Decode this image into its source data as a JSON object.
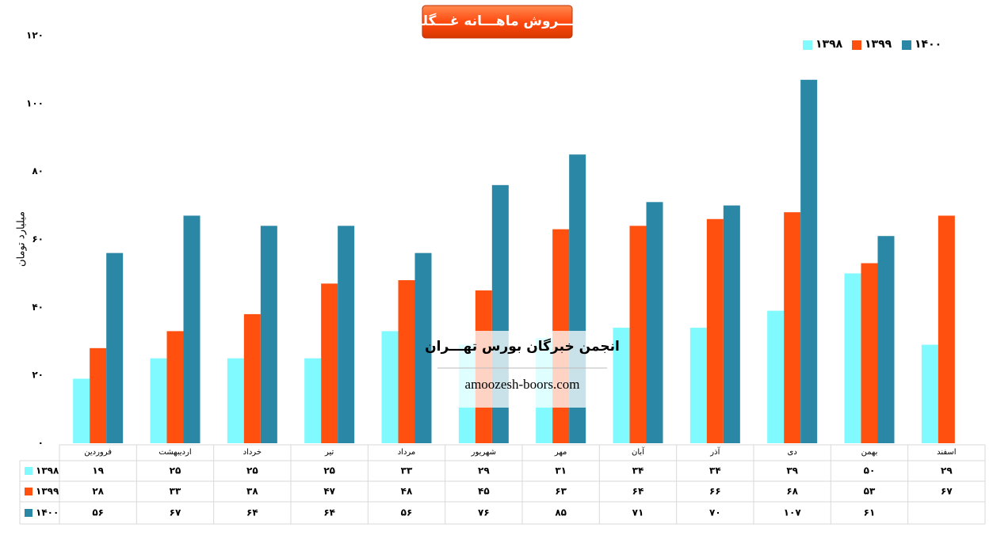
{
  "chart_data": {
    "type": "bar",
    "title": "فـــروش ماهـــانه غـــگلپا",
    "y_label": "میلیارد تومان",
    "watermark": "انجمن خبرگان بورس تهـــران",
    "website": "amoozesh-boors.com",
    "categories": [
      "فروردین",
      "اردیبهشت",
      "خرداد",
      "تیر",
      "مرداد",
      "شهریور",
      "مهر",
      "آبان",
      "آذر",
      "دی",
      "بهمن",
      "اسفند"
    ],
    "series": [
      {
        "name": "۱۳۹۸",
        "color": "#80f9ff",
        "values": [
          19,
          25,
          25,
          25,
          33,
          29,
          31,
          34,
          34,
          39,
          50,
          29
        ],
        "value_labels": [
          "۱۹",
          "۲۵",
          "۲۵",
          "۲۵",
          "۳۳",
          "۲۹",
          "۳۱",
          "۳۴",
          "۳۴",
          "۳۹",
          "۵۰",
          "۲۹"
        ]
      },
      {
        "name": "۱۳۹۹",
        "color": "#ff5010",
        "values": [
          28,
          33,
          38,
          47,
          48,
          45,
          63,
          64,
          66,
          68,
          53,
          67
        ],
        "value_labels": [
          "۲۸",
          "۳۳",
          "۳۸",
          "۴۷",
          "۴۸",
          "۴۵",
          "۶۳",
          "۶۴",
          "۶۶",
          "۶۸",
          "۵۳",
          "۶۷"
        ]
      },
      {
        "name": "۱۴۰۰",
        "color": "#2a87a5",
        "values": [
          56,
          67,
          64,
          64,
          56,
          76,
          85,
          71,
          70,
          107,
          61,
          null
        ],
        "value_labels": [
          "۵۶",
          "۶۷",
          "۶۴",
          "۶۴",
          "۵۶",
          "۷۶",
          "۸۵",
          "۷۱",
          "۷۰",
          "۱۰۷",
          "۶۱",
          null
        ]
      }
    ],
    "ylim": [
      0,
      120
    ],
    "yticks": [
      {
        "value": 0,
        "label": "۰"
      },
      {
        "value": 20,
        "label": "۲۰"
      },
      {
        "value": 40,
        "label": "۴۰"
      },
      {
        "value": 60,
        "label": "۶۰"
      },
      {
        "value": 80,
        "label": "۸۰"
      },
      {
        "value": 100,
        "label": "۱۰۰"
      },
      {
        "value": 120,
        "label": "۱۲۰"
      }
    ],
    "legend": "top-right",
    "grid": false
  }
}
